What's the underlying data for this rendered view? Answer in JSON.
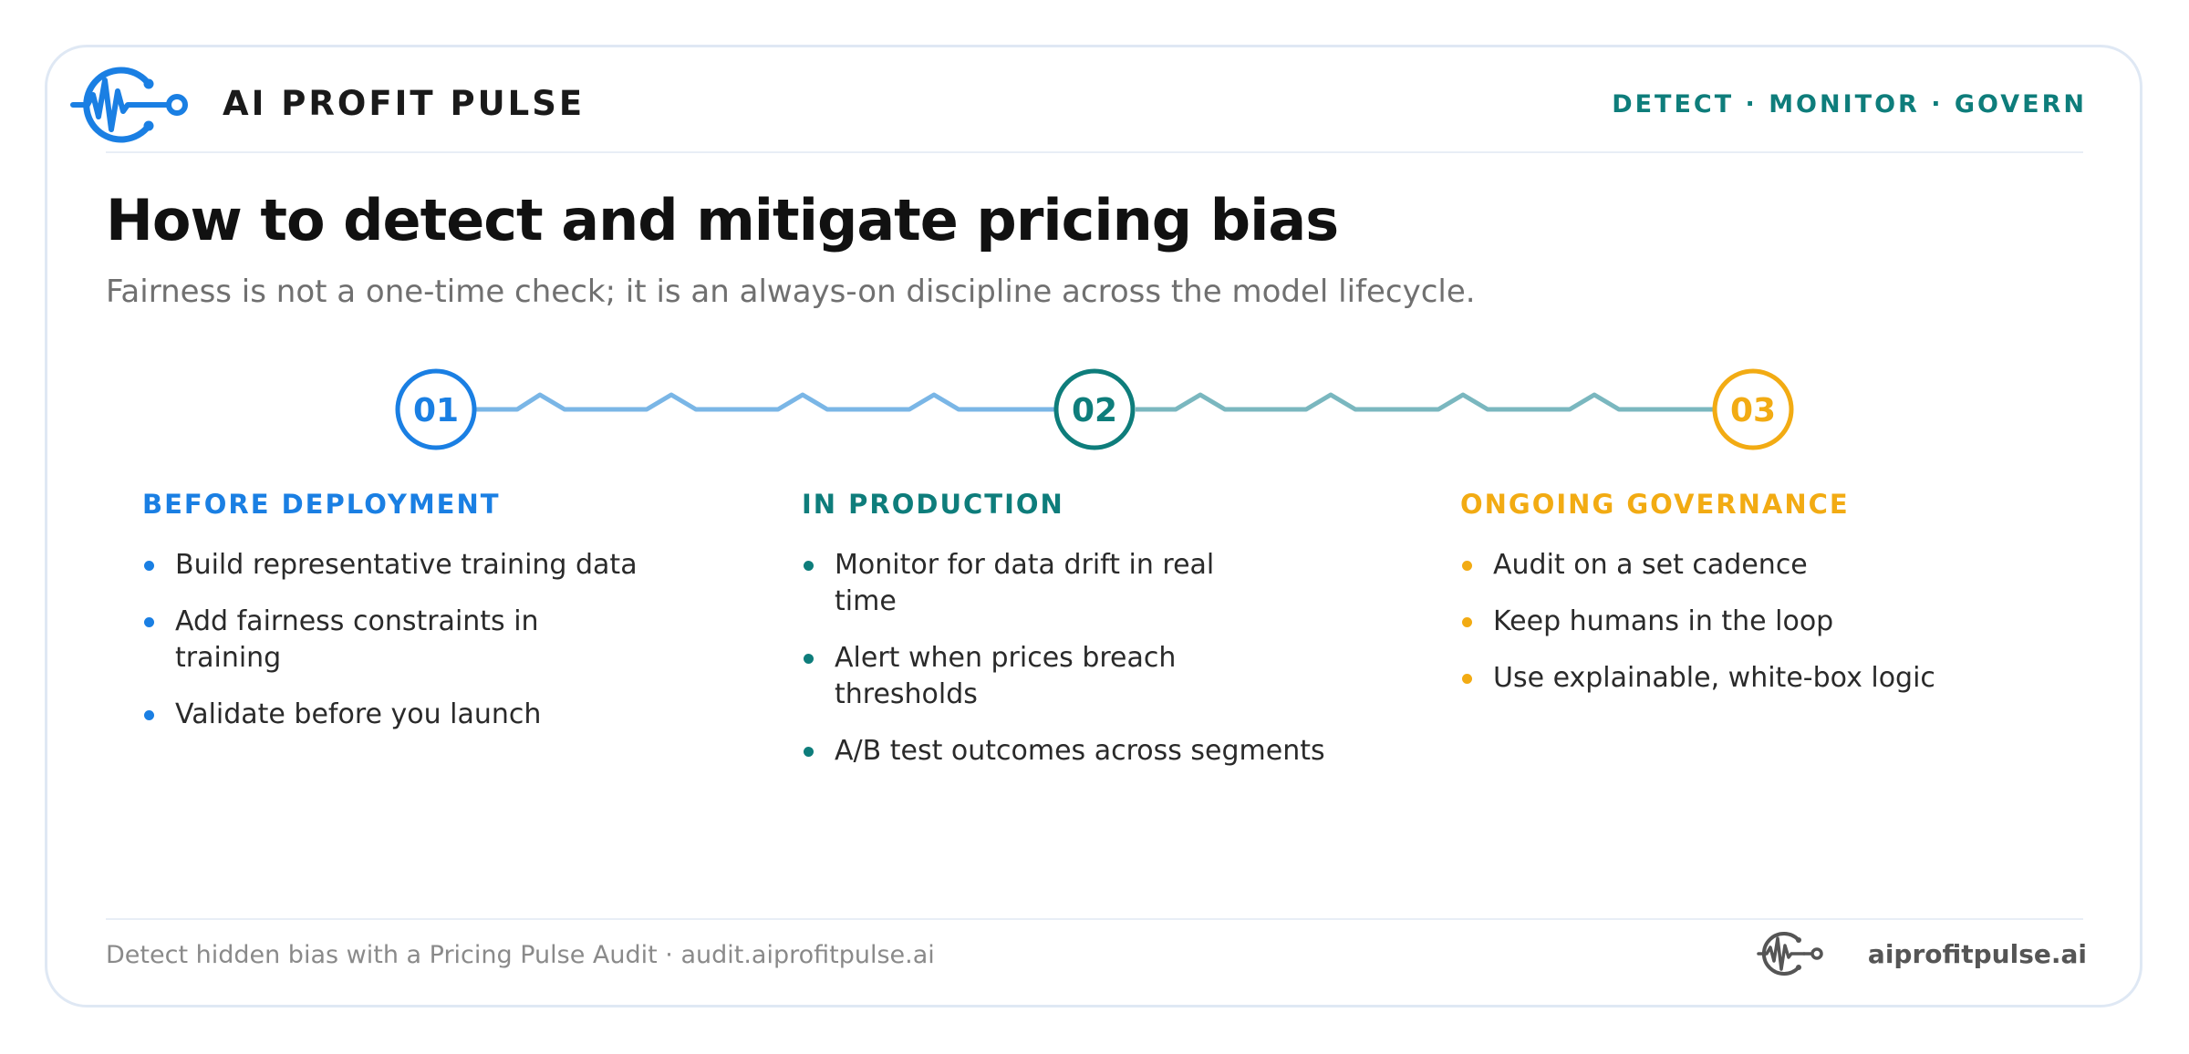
{
  "header": {
    "brand_name": "AI PROFIT PULSE",
    "tagline": "DETECT · MONITOR · GOVERN"
  },
  "main": {
    "title": "How to detect and mitigate pricing bias",
    "subtitle": "Fairness is not a one-time check; it is an always-on discipline across the model lifecycle."
  },
  "steps": [
    {
      "number": "01",
      "color": "#1a7fe3"
    },
    {
      "number": "02",
      "color": "#0e7d7b"
    },
    {
      "number": "03",
      "color": "#f2ab13"
    }
  ],
  "phases": [
    {
      "title": "BEFORE DEPLOYMENT",
      "color": "#1a7fe3",
      "items": [
        "Build representative training data",
        "Add fairness constraints in training",
        "Validate before you launch"
      ]
    },
    {
      "title": "IN PRODUCTION",
      "color": "#0e7d7b",
      "items": [
        "Monitor for data drift in real time",
        "Alert when prices breach thresholds",
        "A/B test outcomes across segments"
      ]
    },
    {
      "title": "ONGOING GOVERNANCE",
      "color": "#f2ab13",
      "items": [
        "Audit on a set cadence",
        "Keep humans in the loop",
        "Use explainable, white-box logic"
      ]
    }
  ],
  "connector_colors": [
    "#7ab6e6",
    "#7ab7bf"
  ],
  "icons": {
    "brand": "pulse-circuit-icon",
    "footer": "pulse-circuit-icon"
  },
  "footer": {
    "cta": "Detect hidden bias with a Pricing Pulse Audit · audit.aiprofitpulse.ai",
    "url": "aiprofitpulse.ai"
  }
}
